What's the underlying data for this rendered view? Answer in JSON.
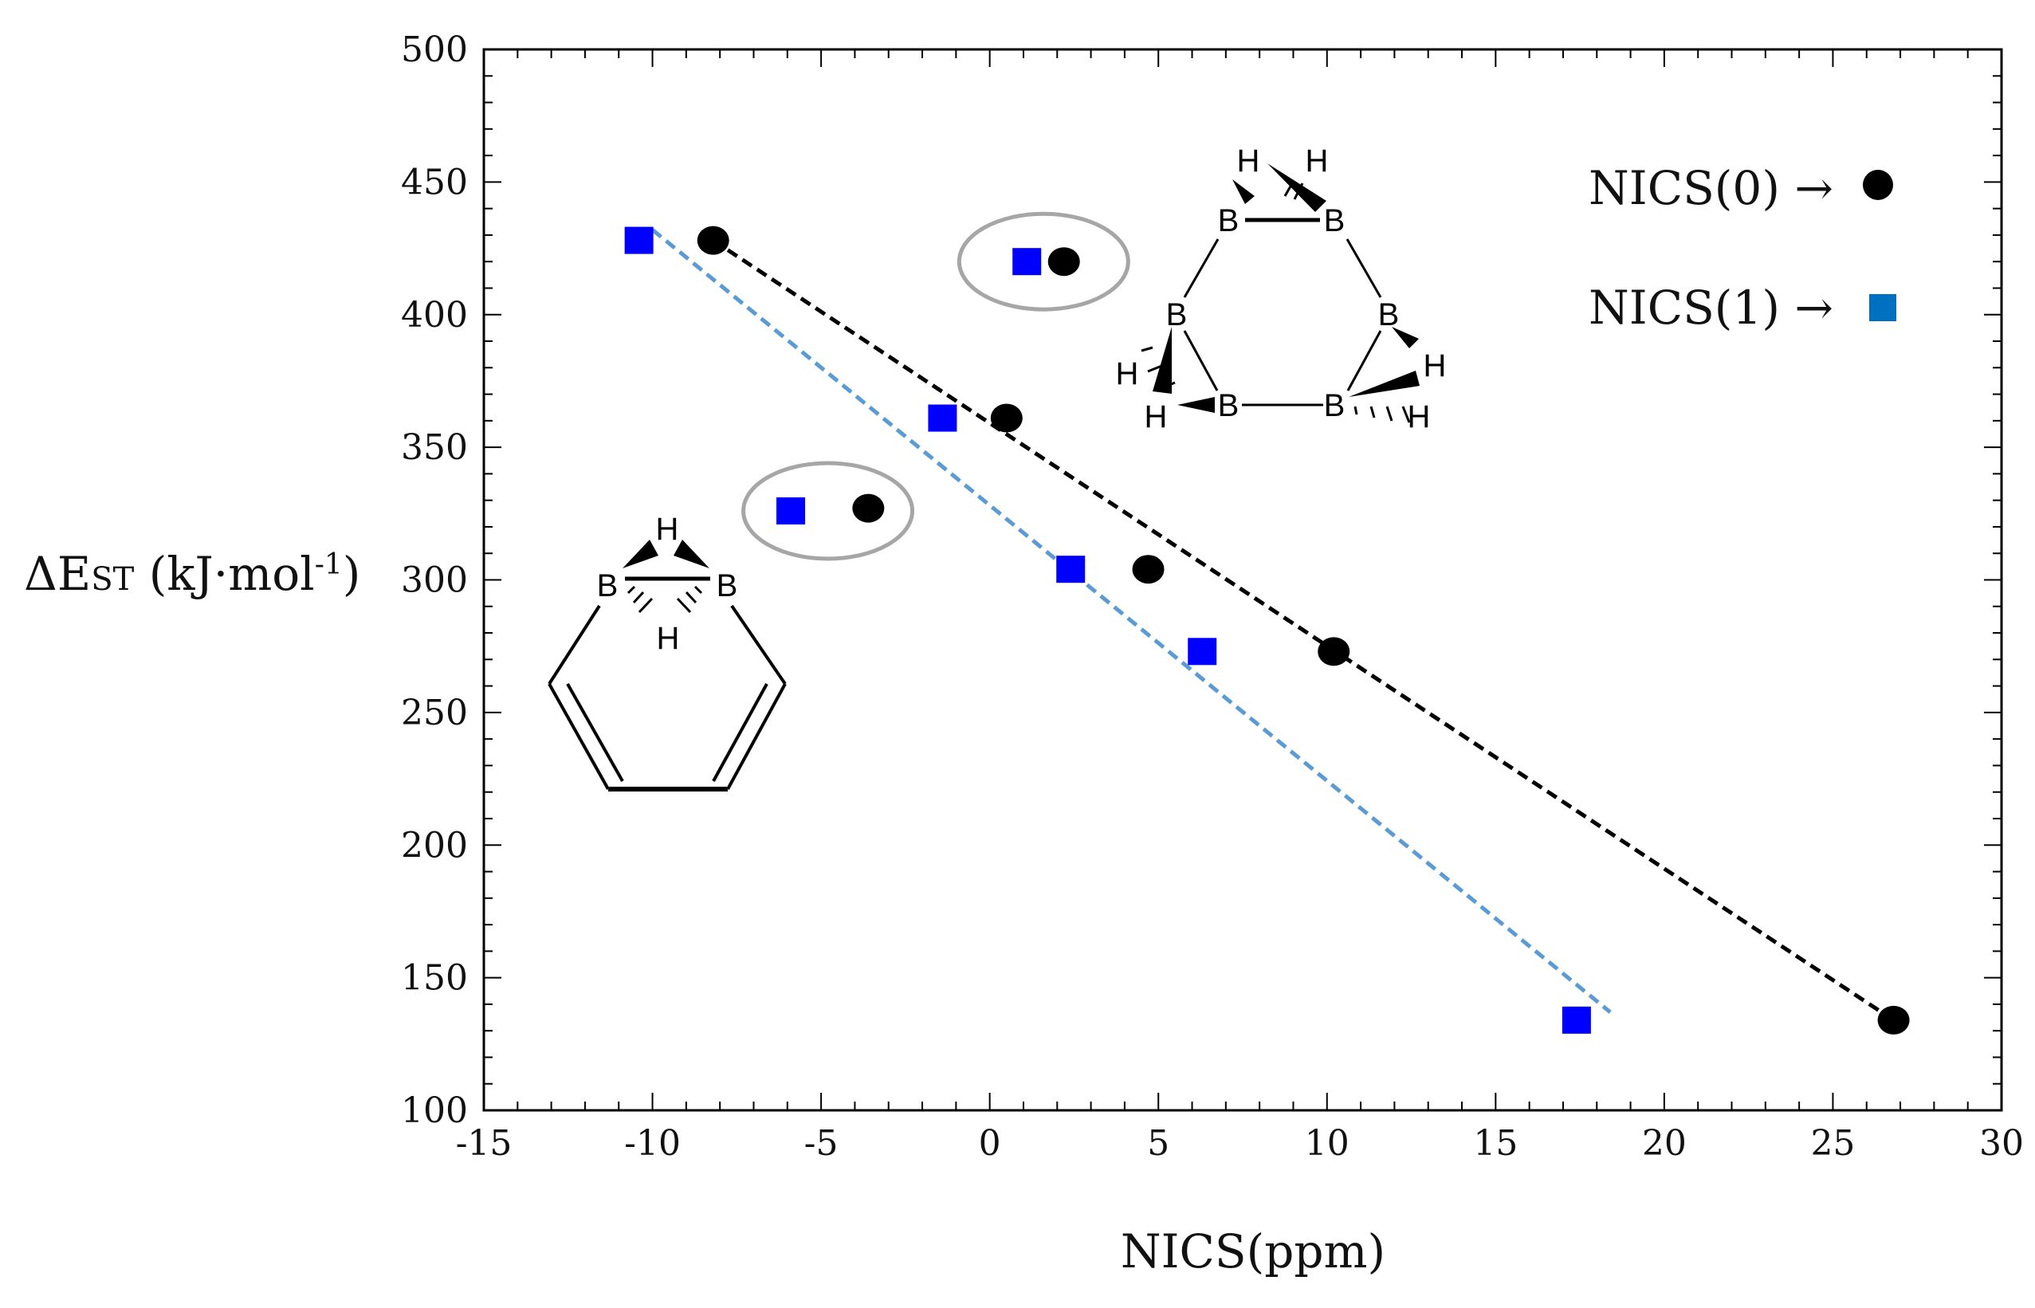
{
  "chart_data": {
    "type": "scatter",
    "title": "",
    "xlabel": "NICS(ppm)",
    "ylabel": {
      "delta": "ΔE",
      "subscript": "ST",
      "unit_open": " (kJ·mol",
      "superscript": "-1",
      "unit_close": ")"
    },
    "xlim": [
      -15,
      30
    ],
    "ylim": [
      100,
      500
    ],
    "xticks": [
      -15,
      -10,
      -5,
      0,
      5,
      10,
      15,
      20,
      25,
      30
    ],
    "yticks": [
      100,
      150,
      200,
      250,
      300,
      350,
      400,
      450,
      500
    ],
    "grid": false,
    "legend_placement": "top-right",
    "series": [
      {
        "name": "NICS(0)",
        "legend_label": "NICS(0) →",
        "marker": "circle",
        "color": "#000000",
        "points": [
          {
            "x": -8.2,
            "y": 428
          },
          {
            "x": 2.2,
            "y": 420
          },
          {
            "x": 0.5,
            "y": 361
          },
          {
            "x": -3.6,
            "y": 327
          },
          {
            "x": 4.7,
            "y": 304
          },
          {
            "x": 10.2,
            "y": 273
          },
          {
            "x": 26.8,
            "y": 134
          }
        ],
        "fit": {
          "style": "dashed",
          "color": "#000000",
          "x": [
            -8.2,
            26.8
          ],
          "y": [
            428,
            134
          ]
        }
      },
      {
        "name": "NICS(1)",
        "legend_label": "NICS(1) →",
        "marker": "square",
        "color": "#0000ff",
        "legend_color": "#0070c0",
        "points": [
          {
            "x": -10.4,
            "y": 428
          },
          {
            "x": 1.1,
            "y": 420
          },
          {
            "x": -1.4,
            "y": 361
          },
          {
            "x": -5.9,
            "y": 326
          },
          {
            "x": 2.4,
            "y": 304
          },
          {
            "x": 6.3,
            "y": 273
          },
          {
            "x": 17.4,
            "y": 134
          }
        ],
        "fit": {
          "style": "dashed",
          "color": "#5b9bd5",
          "x": [
            -10.0,
            18.4
          ],
          "y": [
            432,
            137
          ]
        }
      }
    ],
    "annotations": [
      {
        "type": "ellipse",
        "label": "circled pair",
        "x": 1.6,
        "y": 420
      },
      {
        "type": "ellipse",
        "label": "circled pair",
        "x": -4.8,
        "y": 326
      },
      {
        "type": "structure",
        "label": "monocyclic ring with bridged B–H–B",
        "atoms": [
          "H",
          "B",
          "B",
          "H"
        ]
      },
      {
        "type": "structure",
        "label": "B6H6 ring with bridging hydrogens",
        "atoms": [
          "H",
          "H",
          "B",
          "B",
          "B",
          "B",
          "B",
          "B",
          "H",
          "H",
          "H",
          "H"
        ]
      }
    ]
  }
}
